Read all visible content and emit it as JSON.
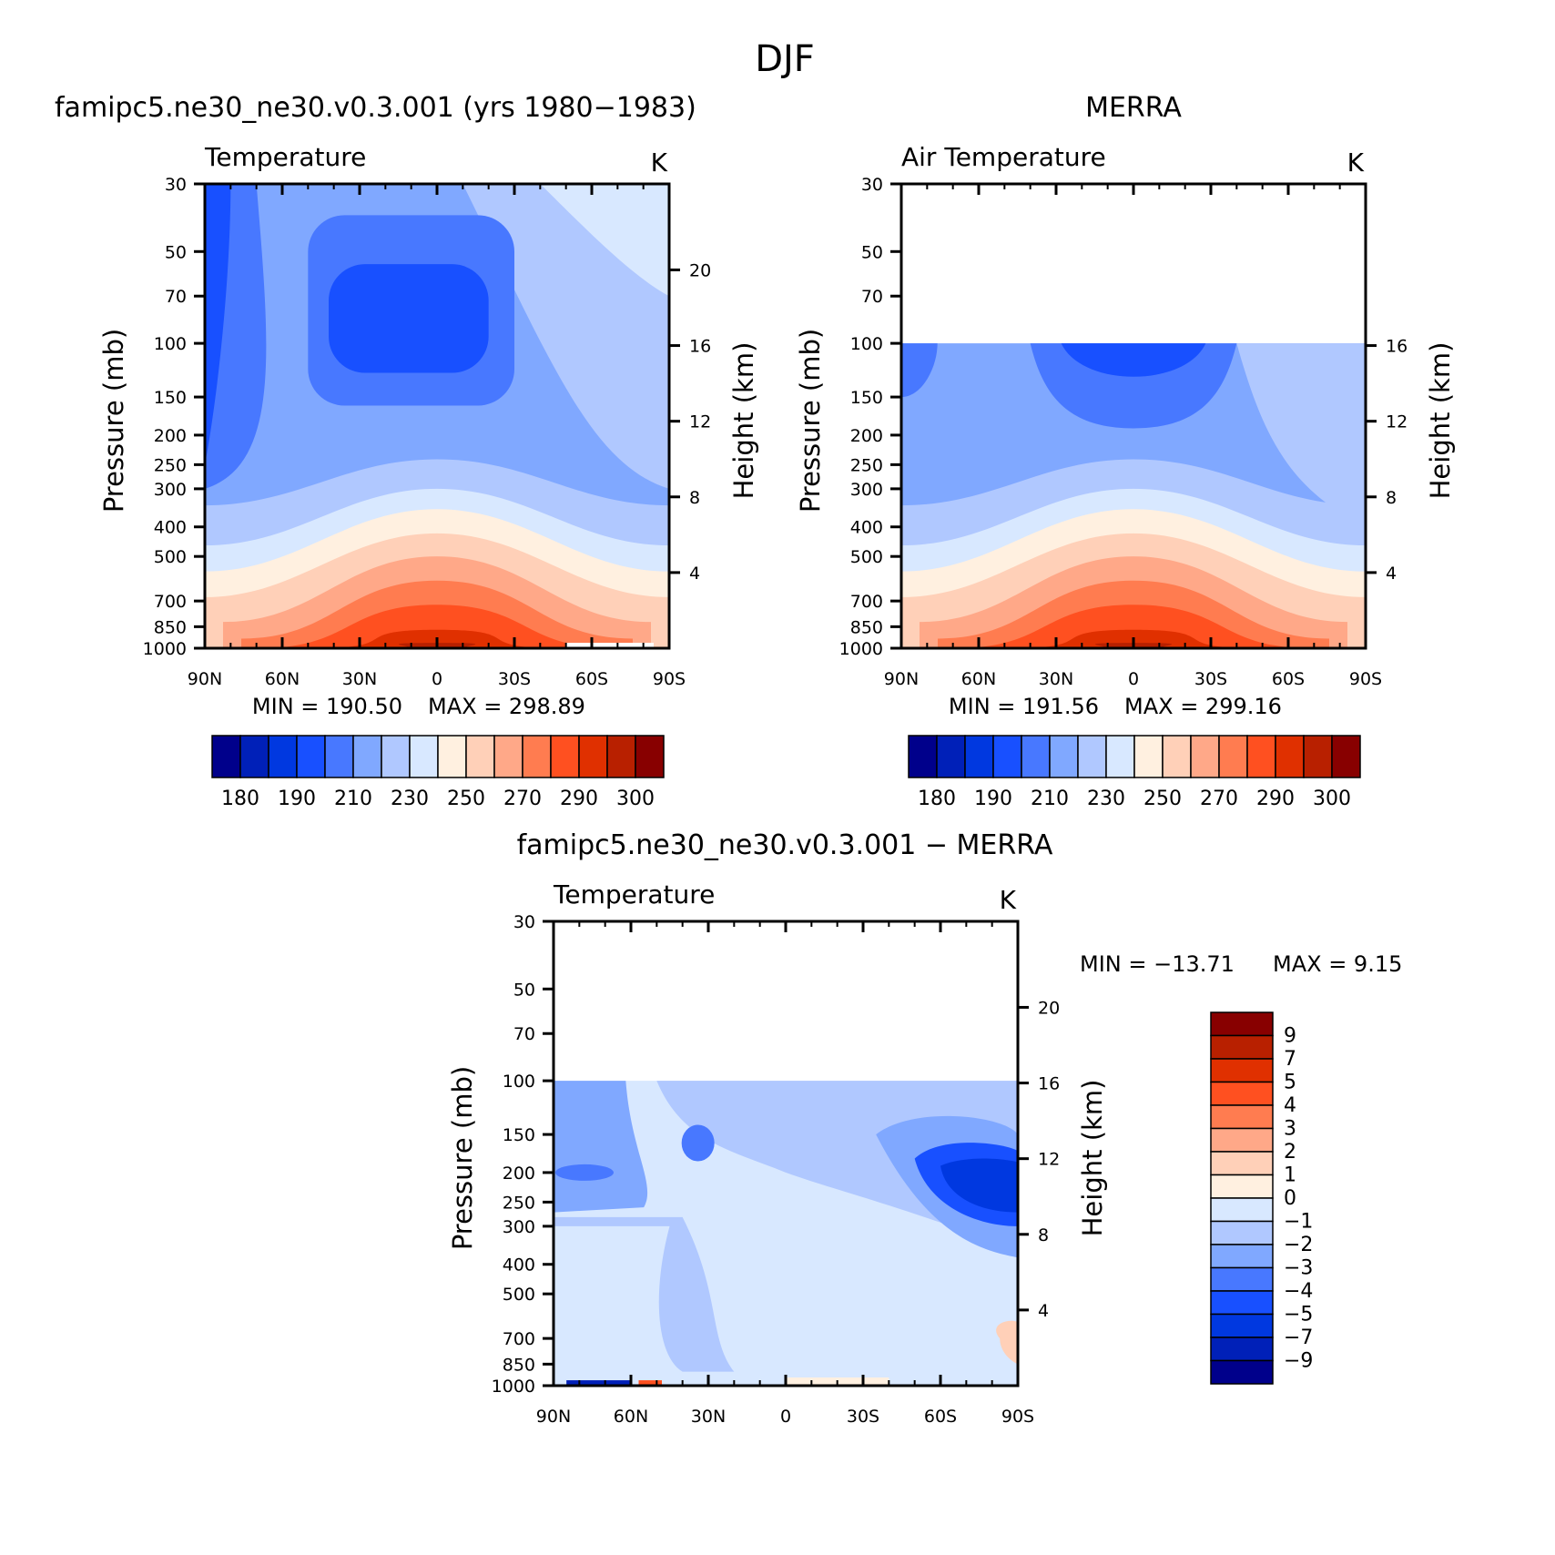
{
  "season_title": "DJF",
  "colors": {
    "palette": [
      "#00008b",
      "#0020b8",
      "#0038e0",
      "#1850ff",
      "#4878ff",
      "#80a8ff",
      "#b0c8ff",
      "#d8e8ff",
      "#fff0e0",
      "#ffd0b8",
      "#ffa888",
      "#ff7c50",
      "#ff5020",
      "#e03000",
      "#b82000",
      "#880000"
    ]
  },
  "chart_data": [
    {
      "type": "contour",
      "panel_title": "famipc5.ne30_ne30.v0.3.001 (yrs 1980−1983)",
      "variable": "Temperature",
      "units": "K",
      "ylabel": "Pressure (mb)",
      "ylabel_right": "Height (km)",
      "x_ticks": [
        "90N",
        "60N",
        "30N",
        "0",
        "30S",
        "60S",
        "90S"
      ],
      "y_ticks": [
        "30",
        "50",
        "70",
        "100",
        "150",
        "200",
        "250",
        "300",
        "400",
        "500",
        "700",
        "850",
        "1000"
      ],
      "height_ticks": [
        "20",
        "16",
        "12",
        "8",
        "4"
      ],
      "ylim": [
        1000,
        30
      ],
      "min_label": "MIN = 190.50",
      "max_label": "MAX = 298.89",
      "min": 190.5,
      "max": 298.89,
      "colorbar_labels": [
        "180",
        "190",
        "210",
        "230",
        "250",
        "270",
        "290",
        "300"
      ],
      "data_top_mb": 30
    },
    {
      "type": "contour",
      "panel_title": "MERRA",
      "variable": "Air Temperature",
      "units": "K",
      "ylabel": "Pressure (mb)",
      "ylabel_right": "Height (km)",
      "x_ticks": [
        "90N",
        "60N",
        "30N",
        "0",
        "30S",
        "60S",
        "90S"
      ],
      "y_ticks": [
        "30",
        "50",
        "70",
        "100",
        "150",
        "200",
        "250",
        "300",
        "400",
        "500",
        "700",
        "850",
        "1000"
      ],
      "height_ticks": [
        "16",
        "12",
        "8",
        "4"
      ],
      "ylim": [
        1000,
        30
      ],
      "min_label": "MIN = 191.56",
      "max_label": "MAX = 299.16",
      "min": 191.56,
      "max": 299.16,
      "colorbar_labels": [
        "180",
        "190",
        "210",
        "230",
        "250",
        "270",
        "290",
        "300"
      ],
      "data_top_mb": 100
    },
    {
      "type": "contour",
      "panel_title": "famipc5.ne30_ne30.v0.3.001 − MERRA",
      "variable": "Temperature",
      "units": "K",
      "ylabel": "Pressure (mb)",
      "ylabel_right": "Height (km)",
      "x_ticks": [
        "90N",
        "60N",
        "30N",
        "0",
        "30S",
        "60S",
        "90S"
      ],
      "y_ticks": [
        "30",
        "50",
        "70",
        "100",
        "150",
        "200",
        "250",
        "300",
        "400",
        "500",
        "700",
        "850",
        "1000"
      ],
      "height_ticks": [
        "20",
        "16",
        "12",
        "8",
        "4"
      ],
      "ylim": [
        1000,
        30
      ],
      "min_label": "MIN = −13.71",
      "max_label": "MAX = 9.15",
      "min": -13.71,
      "max": 9.15,
      "colorbar_labels": [
        "9",
        "7",
        "5",
        "4",
        "3",
        "2",
        "1",
        "0",
        "−1",
        "−2",
        "−3",
        "−4",
        "−5",
        "−7",
        "−9"
      ],
      "data_top_mb": 100
    }
  ]
}
